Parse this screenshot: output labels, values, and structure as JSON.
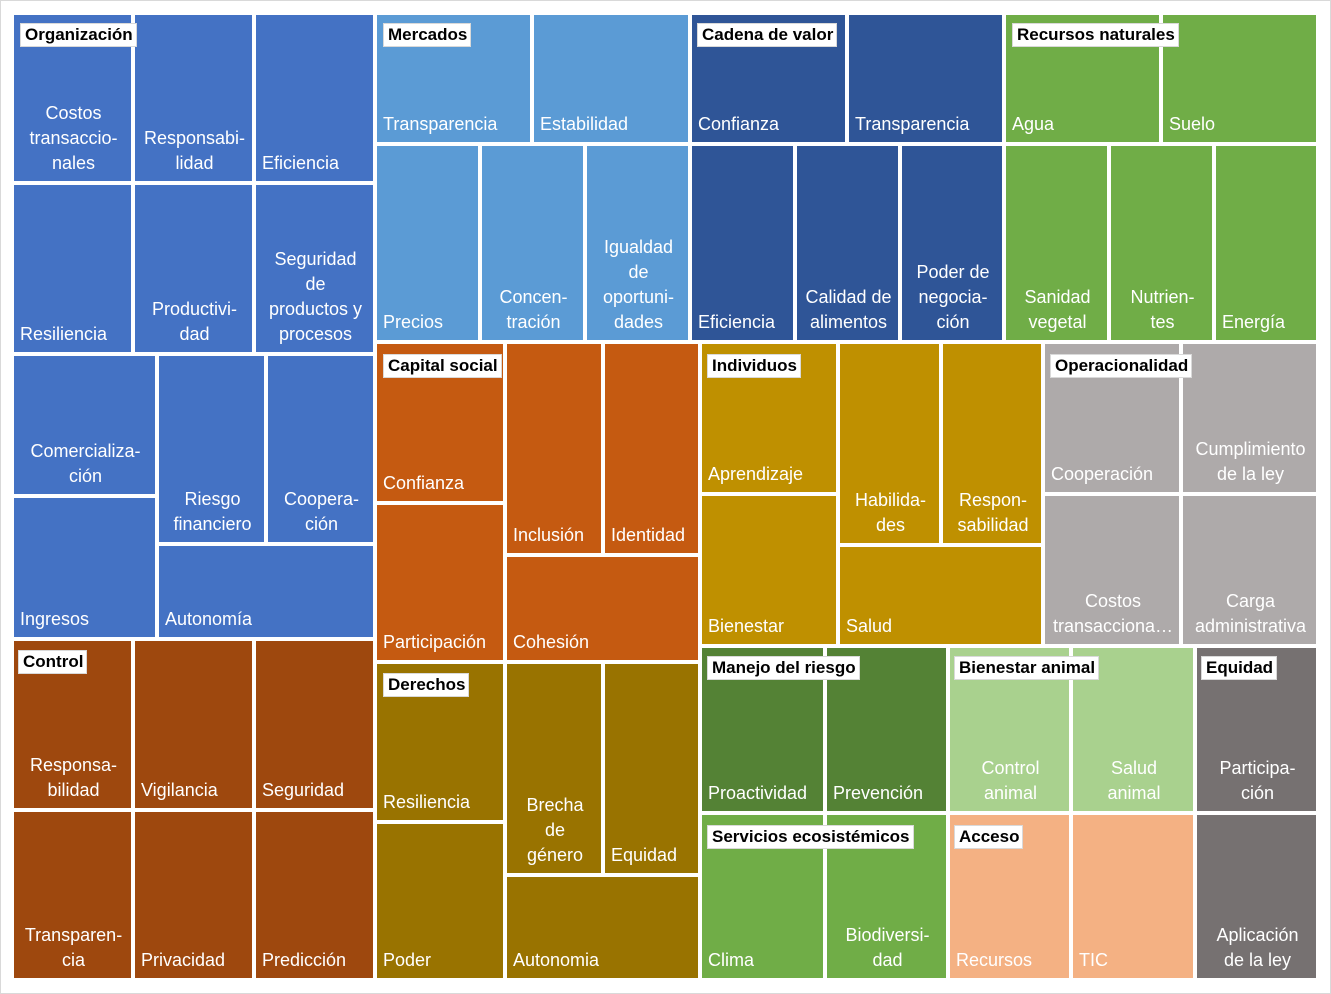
{
  "chart_data": {
    "type": "treemap",
    "groups": [
      {
        "name": "Organización",
        "color": "#4472C4",
        "items": [
          "Costos transaccio-nales",
          "Responsabi-lidad",
          "Eficiencia",
          "Resiliencia",
          "Productivi-dad",
          "Seguridad de productos y procesos",
          "Comercializa-ción",
          "Riesgo financiero",
          "Coopera-ción",
          "Ingresos",
          "Autonomía"
        ]
      },
      {
        "name": "Control",
        "color": "#9E480E",
        "items": [
          "Responsa-bilidad",
          "Vigilancia",
          "Seguridad",
          "Transparen-cia",
          "Privacidad",
          "Predicción"
        ]
      },
      {
        "name": "Mercados",
        "color": "#5B9BD5",
        "items": [
          "Transparencia",
          "Estabilidad",
          "Precios",
          "Concen-tración",
          "Igualdad de oportuni-dades"
        ]
      },
      {
        "name": "Capital social",
        "color": "#C55A11",
        "items": [
          "Confianza",
          "Inclusión",
          "Identidad",
          "Participación",
          "Cohesión"
        ]
      },
      {
        "name": "Derechos",
        "color": "#997300",
        "items": [
          "Resiliencia",
          "Brecha de género",
          "Equidad",
          "Poder",
          "Autonomia"
        ]
      },
      {
        "name": "Cadena de valor",
        "color": "#2F5597",
        "items": [
          "Confianza",
          "Transparencia",
          "Eficiencia",
          "Calidad de alimentos",
          "Poder de negocia-ción"
        ]
      },
      {
        "name": "Individuos",
        "color": "#BF9000",
        "items": [
          "Aprendizaje",
          "Habilida-des",
          "Respon-sabilidad",
          "Bienestar",
          "Salud"
        ]
      },
      {
        "name": "Recursos naturales",
        "color": "#70AD47",
        "items": [
          "Agua",
          "Suelo",
          "Sanidad vegetal",
          "Nutrien-tes",
          "Energía"
        ]
      },
      {
        "name": "Operacionalidad",
        "color": "#AEAAAA",
        "items": [
          "Cooperación",
          "Cumplimiento de la ley",
          "Costos transacciona…",
          "Carga administrativa"
        ]
      },
      {
        "name": "Manejo del riesgo",
        "color": "#548235",
        "items": [
          "Proactividad",
          "Prevención"
        ]
      },
      {
        "name": "Bienestar animal",
        "color": "#A9D18E",
        "items": [
          "Control animal",
          "Salud animal"
        ]
      },
      {
        "name": "Equidad",
        "color": "#767171",
        "items": [
          "Participa-ción",
          "Aplicación de la ley"
        ]
      },
      {
        "name": "Servicios ecosistémicos",
        "color": "#70AD47",
        "items": [
          "Clima",
          "Biodiversi-dad"
        ]
      },
      {
        "name": "Acceso",
        "color": "#F4B183",
        "items": [
          "Recursos",
          "TIC"
        ]
      }
    ]
  }
}
